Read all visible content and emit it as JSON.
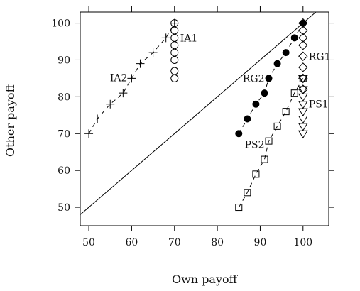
{
  "chart_data": {
    "type": "scatter",
    "xlabel": "Own payoff",
    "ylabel": "Other payoff",
    "xlim": [
      48,
      106
    ],
    "ylim": [
      45,
      103
    ],
    "xticks": [
      "50",
      "60",
      "70",
      "80",
      "90",
      "100"
    ],
    "yticks": [
      "50",
      "60",
      "70",
      "80",
      "90",
      "100"
    ],
    "grid": false,
    "reference_line": "y = x",
    "series": [
      {
        "name": "IA1",
        "marker": "circle-open",
        "line": "none",
        "x": [
          70,
          70,
          70,
          70,
          70,
          70,
          70,
          70
        ],
        "y": [
          100,
          98,
          96,
          94,
          92,
          90,
          87,
          85
        ]
      },
      {
        "name": "IA2",
        "marker": "plus",
        "line": "dashed",
        "x": [
          50,
          52,
          55,
          58,
          60,
          62,
          65,
          68,
          70
        ],
        "y": [
          70,
          74,
          78,
          81,
          85,
          89,
          92,
          96,
          100
        ]
      },
      {
        "name": "RG1",
        "marker": "diamond-open",
        "line": "none",
        "x": [
          100,
          100,
          100,
          100,
          100,
          100,
          100,
          100
        ],
        "y": [
          100,
          98,
          96,
          94,
          91,
          88,
          85,
          82
        ]
      },
      {
        "name": "RG2",
        "marker": "circle-filled",
        "line": "dashed",
        "x": [
          85,
          87,
          89,
          91,
          92,
          94,
          96,
          98,
          100
        ],
        "y": [
          70,
          74,
          78,
          81,
          85,
          89,
          92,
          96,
          100
        ]
      },
      {
        "name": "PS1",
        "marker": "triangle-down-open",
        "line": "none",
        "x": [
          100,
          100,
          100,
          100,
          100,
          100,
          100,
          100
        ],
        "y": [
          85,
          82,
          80,
          78,
          76,
          74,
          72,
          70
        ]
      },
      {
        "name": "PS2",
        "marker": "square-open",
        "line": "dashed",
        "x": [
          85,
          87,
          89,
          91,
          92,
          94,
          96,
          98,
          100
        ],
        "y": [
          50,
          54,
          59,
          63,
          68,
          72,
          76,
          81,
          85
        ]
      }
    ]
  }
}
